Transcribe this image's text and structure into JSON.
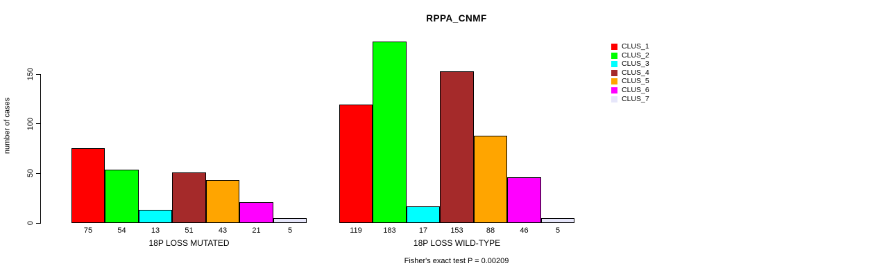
{
  "chart_data": {
    "type": "bar",
    "title": "RPPA_CNMF",
    "ylabel": "number of cases",
    "xlabel": "",
    "yticks": [
      0,
      50,
      100,
      150
    ],
    "ylim": [
      0,
      150
    ],
    "grid": false,
    "legend_position": "right",
    "clusters": [
      {
        "name": "CLUS_1",
        "color": "#FF0000"
      },
      {
        "name": "CLUS_2",
        "color": "#00FF00"
      },
      {
        "name": "CLUS_3",
        "color": "#00FFFF"
      },
      {
        "name": "CLUS_4",
        "color": "#A52A2A"
      },
      {
        "name": "CLUS_5",
        "color": "#FFA500"
      },
      {
        "name": "CLUS_6",
        "color": "#FF00FF"
      },
      {
        "name": "CLUS_7",
        "color": "#E6E6FA"
      }
    ],
    "groups": [
      {
        "label": "18P LOSS MUTATED",
        "values": [
          75,
          54,
          13,
          51,
          43,
          21,
          5
        ]
      },
      {
        "label": "18P LOSS WILD-TYPE",
        "values": [
          119,
          183,
          17,
          153,
          88,
          46,
          5
        ]
      }
    ],
    "footnote": "Fisher's exact test P = 0.00209",
    "axis_color": "#000000",
    "background_color": "#FFFFFF"
  }
}
